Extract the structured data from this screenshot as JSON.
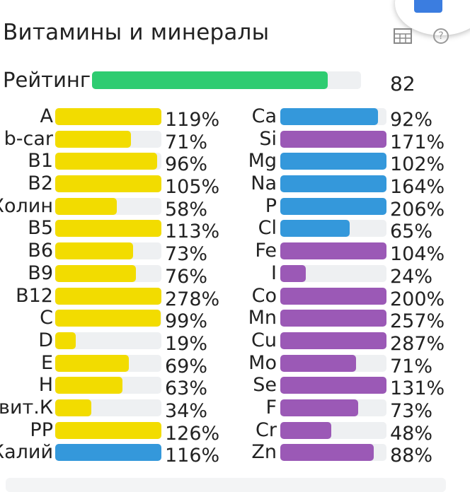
{
  "header": {
    "title": "Витамины и минералы",
    "table_icon": "table-icon",
    "help_icon": "help-icon"
  },
  "rating": {
    "label": "Рейтинг",
    "value": "82",
    "fill_fraction": 0.876,
    "color": "#2ecc71"
  },
  "colors": {
    "vitamin": "#f2dc00",
    "mineral_blue": "#3498db",
    "mineral_purple": "#9b59b6",
    "track": "#eef0f2"
  },
  "vitamins": [
    {
      "label": "A",
      "pct": "119%",
      "value": 119,
      "color": "vitamin"
    },
    {
      "label": "b-car",
      "pct": "71%",
      "value": 71,
      "color": "vitamin"
    },
    {
      "label": "B1",
      "pct": "96%",
      "value": 96,
      "color": "vitamin"
    },
    {
      "label": "B2",
      "pct": "105%",
      "value": 105,
      "color": "vitamin"
    },
    {
      "label": "Холин",
      "pct": "58%",
      "value": 58,
      "color": "vitamin"
    },
    {
      "label": "B5",
      "pct": "113%",
      "value": 113,
      "color": "vitamin"
    },
    {
      "label": "B6",
      "pct": "73%",
      "value": 73,
      "color": "vitamin"
    },
    {
      "label": "B9",
      "pct": "76%",
      "value": 76,
      "color": "vitamin"
    },
    {
      "label": "B12",
      "pct": "278%",
      "value": 278,
      "color": "vitamin"
    },
    {
      "label": "C",
      "pct": "99%",
      "value": 99,
      "color": "vitamin"
    },
    {
      "label": "D",
      "pct": "19%",
      "value": 19,
      "color": "vitamin"
    },
    {
      "label": "E",
      "pct": "69%",
      "value": 69,
      "color": "vitamin"
    },
    {
      "label": "H",
      "pct": "63%",
      "value": 63,
      "color": "vitamin"
    },
    {
      "label": "вит.К",
      "pct": "34%",
      "value": 34,
      "color": "vitamin"
    },
    {
      "label": "PP",
      "pct": "126%",
      "value": 126,
      "color": "vitamin"
    },
    {
      "label": "Калий",
      "pct": "116%",
      "value": 116,
      "color": "mineral_blue"
    }
  ],
  "minerals": [
    {
      "label": "Ca",
      "pct": "92%",
      "value": 92,
      "color": "mineral_blue"
    },
    {
      "label": "Si",
      "pct": "171%",
      "value": 171,
      "color": "mineral_purple"
    },
    {
      "label": "Mg",
      "pct": "102%",
      "value": 102,
      "color": "mineral_blue"
    },
    {
      "label": "Na",
      "pct": "164%",
      "value": 164,
      "color": "mineral_blue"
    },
    {
      "label": "P",
      "pct": "206%",
      "value": 206,
      "color": "mineral_blue"
    },
    {
      "label": "Cl",
      "pct": "65%",
      "value": 65,
      "color": "mineral_blue"
    },
    {
      "label": "Fe",
      "pct": "104%",
      "value": 104,
      "color": "mineral_purple"
    },
    {
      "label": "I",
      "pct": "24%",
      "value": 24,
      "color": "mineral_purple"
    },
    {
      "label": "Co",
      "pct": "200%",
      "value": 200,
      "color": "mineral_purple"
    },
    {
      "label": "Mn",
      "pct": "257%",
      "value": 257,
      "color": "mineral_purple"
    },
    {
      "label": "Cu",
      "pct": "287%",
      "value": 287,
      "color": "mineral_purple"
    },
    {
      "label": "Mo",
      "pct": "71%",
      "value": 71,
      "color": "mineral_purple"
    },
    {
      "label": "Se",
      "pct": "131%",
      "value": 131,
      "color": "mineral_purple"
    },
    {
      "label": "F",
      "pct": "73%",
      "value": 73,
      "color": "mineral_purple"
    },
    {
      "label": "Cr",
      "pct": "48%",
      "value": 48,
      "color": "mineral_purple"
    },
    {
      "label": "Zn",
      "pct": "88%",
      "value": 88,
      "color": "mineral_purple"
    }
  ]
}
